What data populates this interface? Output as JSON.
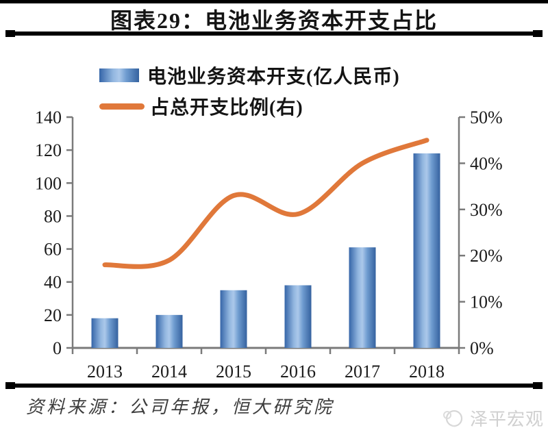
{
  "title": "图表29：电池业务资本开支占比",
  "legend": {
    "items": [
      {
        "label": "电池业务资本开支(亿人民币)",
        "swatch": "bar-gradient"
      },
      {
        "label": "占总开支比例(右)",
        "swatch": "orange-line"
      }
    ]
  },
  "chart_data": {
    "type": "bar",
    "subtype": "combo bar + smoothed line, dual axis",
    "categories": [
      "2013",
      "2014",
      "2015",
      "2016",
      "2017",
      "2018"
    ],
    "series": [
      {
        "name": "电池业务资本开支(亿人民币)",
        "type": "bar",
        "axis": "left",
        "values": [
          18,
          20,
          35,
          38,
          61,
          118
        ]
      },
      {
        "name": "占总开支比例(右)",
        "type": "line",
        "axis": "right",
        "unit": "%",
        "values": [
          18,
          19,
          33,
          29,
          40,
          45
        ],
        "smooth": true
      }
    ],
    "left_axis": {
      "min": 0,
      "max": 140,
      "tick_values": [
        0,
        20,
        40,
        60,
        80,
        100,
        120,
        140
      ],
      "tick_labels": [
        "0",
        "20",
        "40",
        "60",
        "80",
        "100",
        "120",
        "140"
      ]
    },
    "right_axis": {
      "min": 0,
      "max": 50,
      "tick_values": [
        0,
        10,
        20,
        30,
        40,
        50
      ],
      "tick_labels": [
        "0%",
        "10%",
        "20%",
        "30%",
        "40%",
        "50%"
      ]
    },
    "grid": false,
    "legend_position": "top-left"
  },
  "footer": {
    "source": "资料来源：公司年报，恒大研究院",
    "watermark": "泽平宏观"
  },
  "colors": {
    "bar_edge": "#3565a8",
    "bar_light": "#abc8ea",
    "bar_gradient_stops": [
      [
        "0%",
        "#3565a8"
      ],
      [
        "35%",
        "#93b7e0"
      ],
      [
        "50%",
        "#abc8ea"
      ],
      [
        "68%",
        "#6f9cd0"
      ],
      [
        "100%",
        "#35629f"
      ]
    ],
    "line": "#e0783a",
    "axis": "#7a7a7a",
    "text": "#1b1b1b",
    "rule": "#000000",
    "source_text": "#3d3d3d",
    "watermark": "#d0d0d0"
  }
}
